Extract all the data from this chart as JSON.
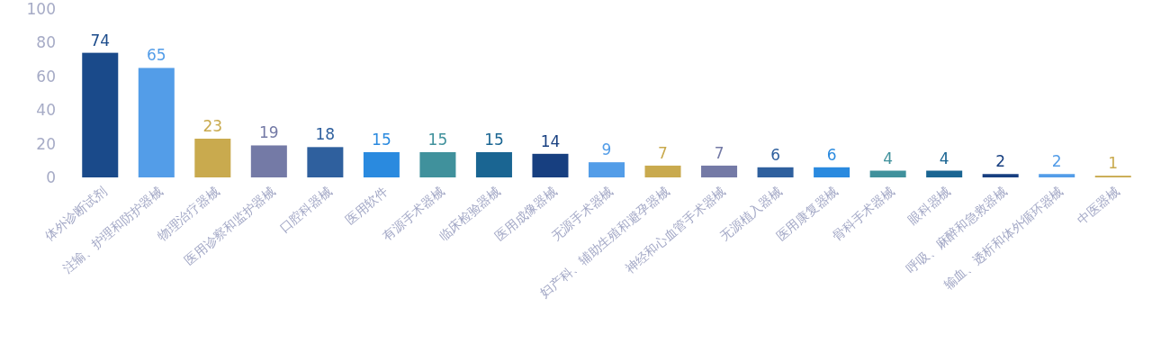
{
  "chart_data": {
    "type": "bar",
    "categories": [
      "体外诊断试剂",
      "注输、护理和防护器械",
      "物理治疗器械",
      "医用诊察和监护器械",
      "口腔科器械",
      "医用软件",
      "有源手术器械",
      "临床检验器械",
      "医用成像器械",
      "无源手术器械",
      "妇产科、辅助生殖和避孕器械",
      "神经和心血管手术器械",
      "无源植入器械",
      "医用康复器械",
      "骨科手术器械",
      "眼科器械",
      "呼吸、麻醉和急救器械",
      "输血、透析和体外循环器械",
      "中医器械"
    ],
    "values": [
      74,
      65,
      23,
      19,
      18,
      15,
      15,
      15,
      14,
      9,
      7,
      7,
      6,
      6,
      4,
      4,
      2,
      2,
      1
    ],
    "colors": [
      "#1a4a8a",
      "#539de8",
      "#c9aa4e",
      "#747aa6",
      "#2f609e",
      "#2a8adf",
      "#40919c",
      "#1a6592",
      "#173f80",
      "#539de8",
      "#c9aa4e",
      "#747aa6",
      "#2f609e",
      "#2a8adf",
      "#40919c",
      "#1a6592",
      "#173f80",
      "#539de8",
      "#c9aa4e"
    ],
    "ylim": [
      0,
      100
    ],
    "yticks": [
      0,
      20,
      40,
      60,
      80,
      100
    ],
    "data_labels": true,
    "grid": false
  }
}
